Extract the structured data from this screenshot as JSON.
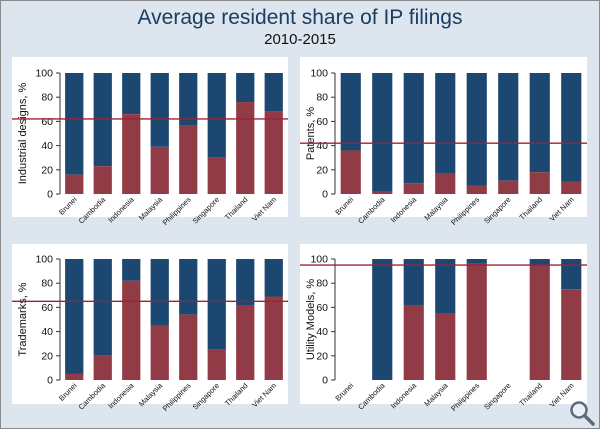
{
  "page": {
    "title": "Average resident share of IP filings",
    "subtitle": "2010-2015",
    "zoom_icon": "magnifier-icon"
  },
  "colors": {
    "resident": "#913b47",
    "nonresident": "#1b4771",
    "average_line": "#9e2236",
    "background": "#dde6ee",
    "plot_bg": "#ffffff"
  },
  "chart_data": [
    {
      "type": "bar",
      "stacked": true,
      "title": "",
      "ylabel": "Industrial designs, %",
      "xlabel": "",
      "ylim": [
        0,
        100
      ],
      "yticks": [
        0,
        20,
        40,
        60,
        80,
        100
      ],
      "categories": [
        "Brunei",
        "Cambodia",
        "Indonesia",
        "Malaysia",
        "Philippines",
        "Singapore",
        "Thailand",
        "Viet Nam"
      ],
      "series": [
        {
          "values": [
            16,
            23,
            66,
            39,
            57,
            30,
            76,
            68
          ]
        },
        {
          "values": [
            84,
            77,
            34,
            61,
            43,
            70,
            24,
            32
          ]
        }
      ],
      "reference_line": 62
    },
    {
      "type": "bar",
      "stacked": true,
      "title": "",
      "ylabel": "Patents, %",
      "xlabel": "",
      "ylim": [
        0,
        100
      ],
      "yticks": [
        0,
        20,
        40,
        60,
        80,
        100
      ],
      "categories": [
        "Brunei",
        "Cambodia",
        "Indonesia",
        "Malaysia",
        "Philippines",
        "Singapore",
        "Thailand",
        "Viet Nam"
      ],
      "series": [
        {
          "values": [
            36,
            2,
            9,
            17,
            7,
            11,
            18,
            10
          ]
        },
        {
          "values": [
            64,
            98,
            91,
            83,
            93,
            89,
            82,
            90
          ]
        }
      ],
      "reference_line": 42
    },
    {
      "type": "bar",
      "stacked": true,
      "title": "",
      "ylabel": "Trademarks, %",
      "xlabel": "",
      "ylim": [
        0,
        100
      ],
      "yticks": [
        0,
        20,
        40,
        60,
        80,
        100
      ],
      "categories": [
        "Brunei",
        "Cambodia",
        "Indonesia",
        "Malaysia",
        "Philippines",
        "Singapore",
        "Thailand",
        "Viet Nam"
      ],
      "series": [
        {
          "values": [
            5,
            20,
            82,
            45,
            54,
            25,
            62,
            69
          ]
        },
        {
          "values": [
            95,
            80,
            18,
            55,
            46,
            75,
            38,
            31
          ]
        }
      ],
      "reference_line": 65
    },
    {
      "type": "bar",
      "stacked": true,
      "title": "",
      "ylabel": "Utility Models, %",
      "xlabel": "",
      "ylim": [
        0,
        100
      ],
      "yticks": [
        0,
        20,
        40,
        60,
        80,
        100
      ],
      "categories": [
        "Brunei",
        "Cambodia",
        "Indonesia",
        "Malaysia",
        "Philippines",
        "Singapore",
        "Thailand",
        "Viet Nam"
      ],
      "series": [
        {
          "values": [
            0,
            0,
            62,
            55,
            96,
            0,
            95,
            75
          ]
        },
        {
          "values": [
            0,
            100,
            38,
            45,
            4,
            0,
            5,
            25
          ]
        }
      ],
      "reference_line": 95
    }
  ]
}
